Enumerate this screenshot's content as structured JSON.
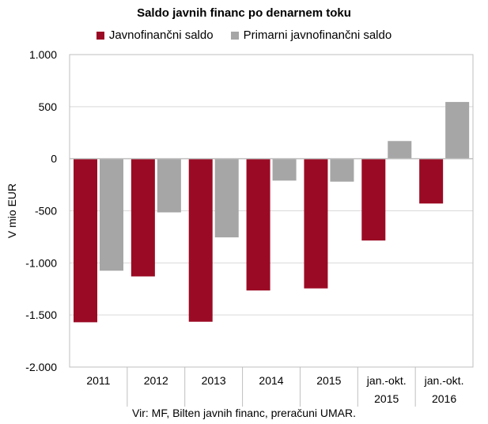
{
  "chart_data": {
    "type": "bar",
    "title": "Saldo javnih financ po denarnem toku",
    "ylabel": "V mio EUR",
    "xlabel": "",
    "ylim": [
      -2000,
      1000
    ],
    "yticks": [
      1000,
      500,
      0,
      -500,
      -1000,
      -1500,
      -2000
    ],
    "ytick_labels": [
      "1.000",
      "500",
      "0",
      "-500",
      "-1.000",
      "-1.500",
      "-2.000"
    ],
    "categories": [
      [
        "2011"
      ],
      [
        "2012"
      ],
      [
        "2013"
      ],
      [
        "2014"
      ],
      [
        "2015"
      ],
      [
        "jan.-okt.",
        "2015"
      ],
      [
        "jan.-okt.",
        "2016"
      ]
    ],
    "series": [
      {
        "name": "Javnofinančni saldo",
        "color": "#9b0a24",
        "values": [
          -1570,
          -1130,
          -1565,
          -1265,
          -1245,
          -785,
          -430
        ]
      },
      {
        "name": "Primarni javnofinančni saldo",
        "color": "#a6a6a6",
        "values": [
          -1075,
          -515,
          -755,
          -210,
          -220,
          170,
          545
        ]
      }
    ],
    "grid": true,
    "legend_position": "top",
    "source": "Vir: MF, Bilten javnih financ, preračuni UMAR."
  }
}
